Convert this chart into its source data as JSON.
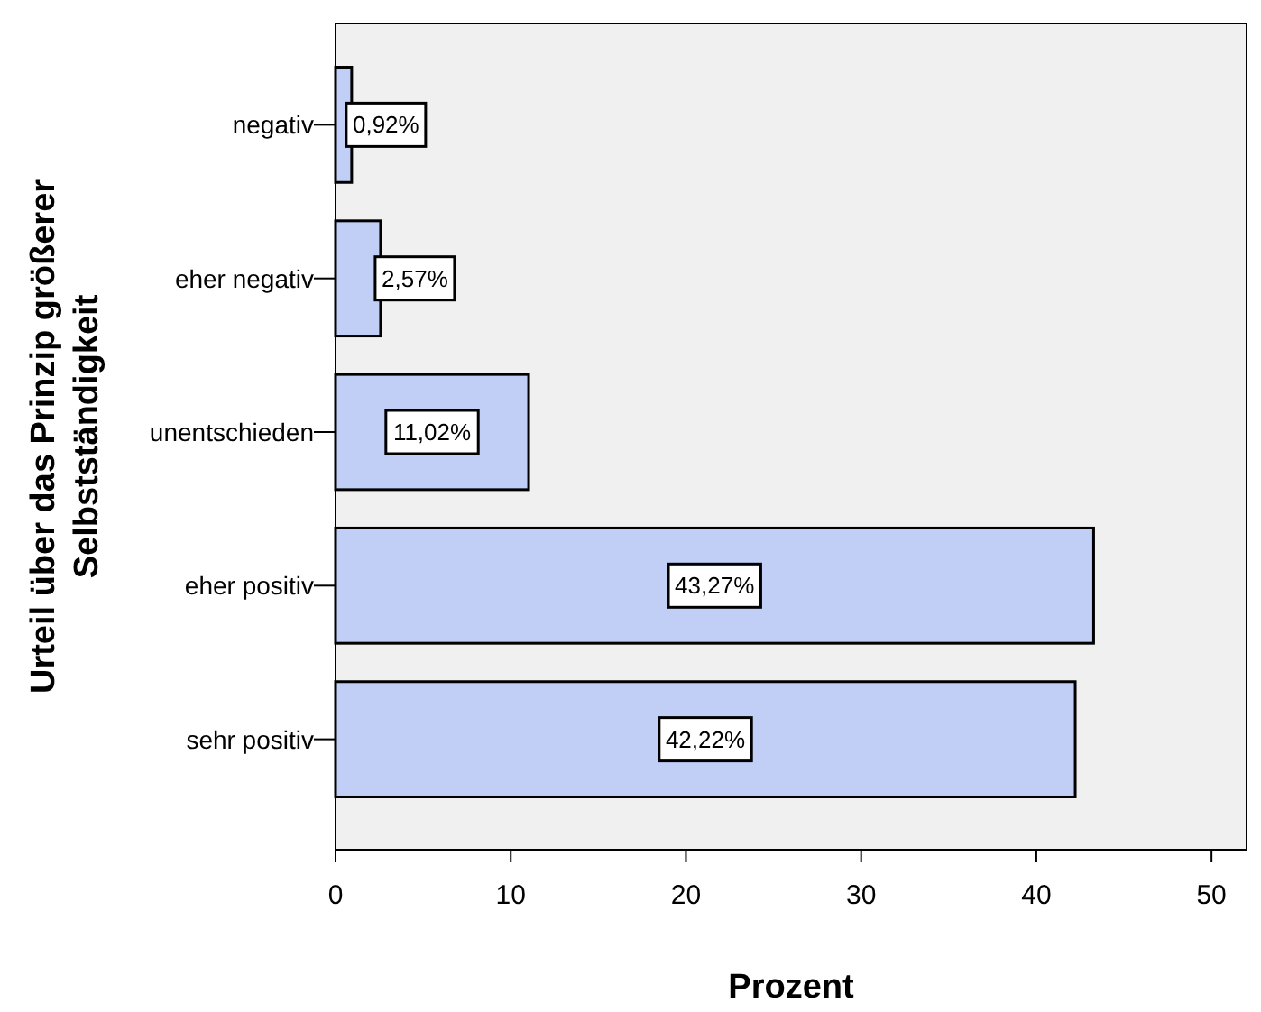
{
  "chart_data": {
    "type": "bar",
    "orientation": "horizontal",
    "xlabel": "Prozent",
    "ylabel": "Urteil über das Prinzip größerer\nSelbstständigkeit",
    "categories": [
      "negativ",
      "eher negativ",
      "unentschieden",
      "eher positiv",
      "sehr positiv"
    ],
    "values": [
      0.92,
      2.57,
      11.02,
      43.27,
      42.22
    ],
    "value_labels": [
      "0,92%",
      "2,57%",
      "11,02%",
      "43,27%",
      "42,22%"
    ],
    "color": "#c1cff7",
    "xlim": [
      0,
      52
    ],
    "xticks": [
      0,
      10,
      20,
      30,
      40,
      50
    ],
    "grid": false
  }
}
